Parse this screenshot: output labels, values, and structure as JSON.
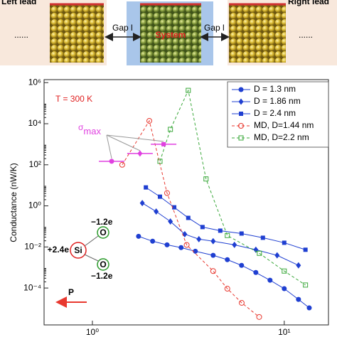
{
  "schematic": {
    "left": "Left lead",
    "right": "Right lead",
    "center": "System",
    "gap_left": "Gap l",
    "gap_right": "Gap l",
    "dots_left": "......",
    "dots_right": "......"
  },
  "chart_data": {
    "type": "line",
    "ylabel": "Conductance (nW/K)",
    "xscale": "log",
    "yscale": "log",
    "xlim": [
      0.56,
      17
    ],
    "ylim": [
      1.6e-06,
      1400000
    ],
    "xticks": [
      {
        "value": 1,
        "label": "10⁰"
      },
      {
        "value": 10,
        "label": "10¹"
      }
    ],
    "yticks": [
      {
        "value": 0.0001,
        "label": "10⁻⁴"
      },
      {
        "value": 0.01,
        "label": "10⁻²"
      },
      {
        "value": 1,
        "label": "10⁰"
      },
      {
        "value": 100,
        "label": "10²"
      },
      {
        "value": 10000,
        "label": "10⁴"
      },
      {
        "value": 1000000,
        "label": "10⁶"
      }
    ],
    "legend": "upper right",
    "series": [
      {
        "name": "D = 1.3 nm",
        "color": "#1f3fd1",
        "marker": "circle",
        "linestyle": "solid",
        "x": [
          1.74,
          2.06,
          2.45,
          2.9,
          3.44,
          4.26,
          5.05,
          5.99,
          7.11,
          8.43,
          10,
          11.86,
          13.5
        ],
        "values": [
          0.033,
          0.019,
          0.0127,
          0.0093,
          0.0062,
          0.0039,
          0.0024,
          0.00127,
          0.00057,
          0.00024,
          9.3e-05,
          2.8e-05,
          1.08e-05
        ]
      },
      {
        "name": "D = 1.86 nm",
        "color": "#1f3fd1",
        "marker": "diamond",
        "linestyle": "solid",
        "x": [
          1.82,
          2.15,
          2.55,
          3.03,
          3.59,
          4.26,
          5.5,
          7.11,
          9.18,
          11.86
        ],
        "values": [
          1.37,
          0.53,
          0.174,
          0.042,
          0.024,
          0.019,
          0.0127,
          0.0073,
          0.0039,
          0.00127
        ]
      },
      {
        "name": "D = 2.4 nm",
        "color": "#1f3fd1",
        "marker": "square",
        "linestyle": "solid",
        "x": [
          1.9,
          2.25,
          2.67,
          3.16,
          3.75,
          4.64,
          5.99,
          7.74,
          10,
          12.9
        ],
        "values": [
          7.9,
          2.8,
          0.85,
          0.26,
          0.093,
          0.062,
          0.045,
          0.028,
          0.016,
          0.0073
        ]
      },
      {
        "name": "MD, D=1.44 nm",
        "color": "#e8382f",
        "marker": "open-circle",
        "linestyle": "dashed",
        "x": [
          1.43,
          1.98,
          2.45,
          3.1,
          4.26,
          5.05,
          6.0,
          7.4
        ],
        "values": [
          100,
          13800,
          4.2,
          0.0126,
          0.00067,
          9.3e-05,
          1.9e-05,
          3.9e-06
        ]
      },
      {
        "name": "MD, D=2.2 nm",
        "color": "#3aa83a",
        "marker": "open-square",
        "linestyle": "dashed",
        "x": [
          2.25,
          2.55,
          3.16,
          3.91,
          5.05,
          7.42,
          10,
          12.9
        ],
        "values": [
          148,
          5300,
          420000,
          20.5,
          0.036,
          0.0049,
          0.00067,
          0.00014
        ]
      }
    ],
    "sigma_max": {
      "text": "σ",
      "sub": "max",
      "color": "#e040e0",
      "x": [
        1.26,
        1.77,
        2.35
      ],
      "values": [
        148,
        355,
        1000
      ]
    },
    "annotation": "T = 300 K",
    "inset": {
      "si": "Si",
      "o1": "O",
      "o2": "O",
      "q_si": "+2.4e",
      "q_o1": "−1.2e",
      "q_o2": "−1.2e",
      "p": "P"
    }
  }
}
